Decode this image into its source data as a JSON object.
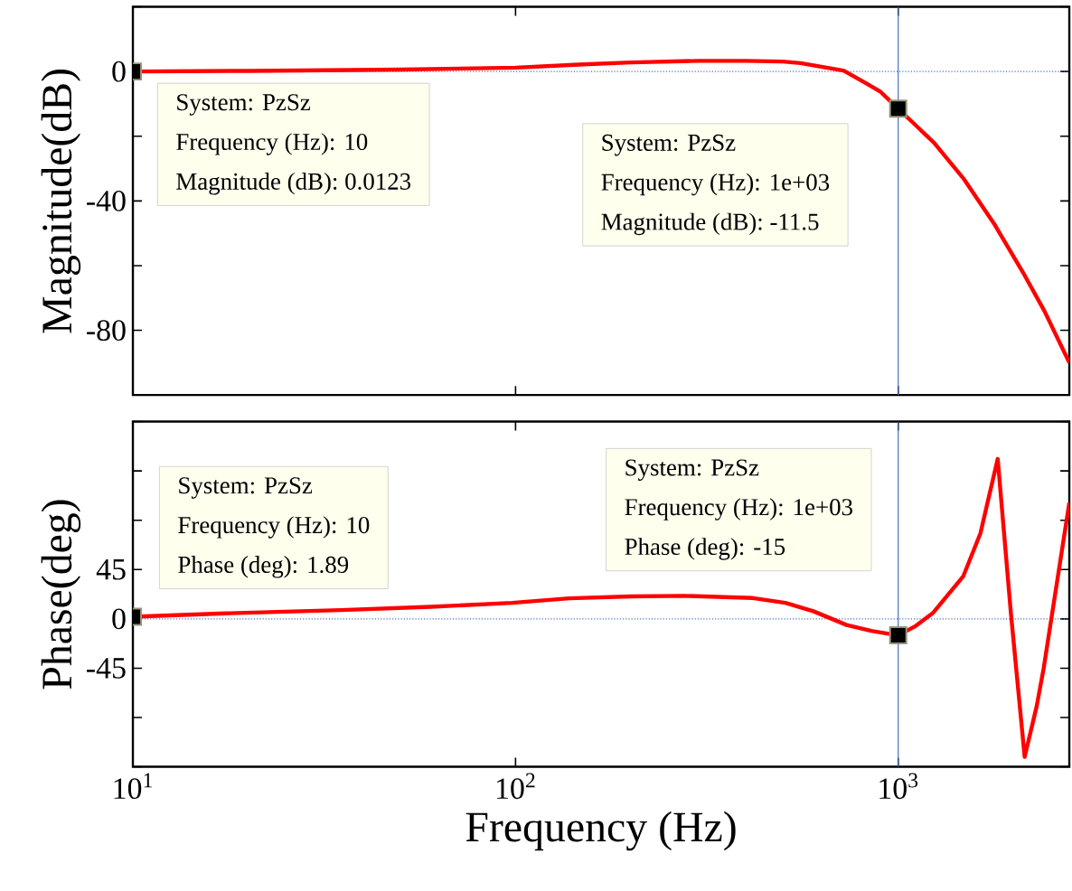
{
  "chart_data": [
    {
      "type": "line",
      "ylabel": "Magnitude(dB)",
      "log": "x",
      "tick_labels": "y",
      "xlim": [
        10,
        2800
      ],
      "xticks": [
        {
          "value": 10,
          "label": null
        },
        {
          "value": 100,
          "label": null
        },
        {
          "value": 1000,
          "label": null
        }
      ],
      "ylim": [
        -100,
        20
      ],
      "yticks": [
        {
          "value": -100,
          "label": null
        },
        -80,
        {
          "value": -60,
          "label": null
        },
        -40,
        {
          "value": -20,
          "label": null
        },
        0,
        {
          "value": 20,
          "label": null
        }
      ],
      "series": [
        {
          "color": "#ff0000",
          "x": [
            10,
            20,
            50,
            100,
            150,
            200,
            300,
            400,
            500,
            556,
            650,
            720,
            820,
            900,
            1000,
            1120,
            1240,
            1480,
            1780,
            2140,
            2410,
            2800
          ],
          "values": [
            0.0123,
            0.2,
            0.6,
            1.2,
            2.2,
            2.8,
            3.3,
            3.3,
            3.1,
            2.6,
            1.2,
            0.3,
            -3.5,
            -6.3,
            -11.5,
            -17,
            -22,
            -33,
            -47,
            -63,
            -74,
            -90
          ]
        }
      ],
      "line_style": "solid",
      "ref_lines": [
        {
          "axis": "y",
          "value": 0,
          "color": "#4472c4",
          "line_style": "dotted"
        },
        {
          "axis": "x",
          "value": 1000,
          "color": "#4472c4",
          "line_style": "solid"
        }
      ],
      "annotations": [
        "System: PzSz",
        "Frequency (Hz): 10",
        "Magnitude (dB): 0.0123",
        "System: PzSz",
        "Frequency (Hz): 1e+03",
        "Magnitude (dB): -11.5"
      ]
    },
    {
      "type": "line",
      "xlabel": "Frequency  (Hz)",
      "ylabel": "Phase(deg)",
      "log": "x",
      "xlim": [
        10,
        2800
      ],
      "xticks": [
        {
          "value": 10,
          "label": "10$^{1}$"
        },
        {
          "value": 100,
          "label": "10$^{2}$"
        },
        {
          "value": 1000,
          "label": "10$^{3}$"
        }
      ],
      "ylim": [
        -135,
        180
      ],
      "yticks": [
        {
          "value": -135,
          "label": null
        },
        {
          "value": -90,
          "label": null
        },
        -45,
        0,
        45,
        {
          "value": 90,
          "label": null
        },
        {
          "value": 135,
          "label": null
        },
        {
          "value": 180,
          "label": null
        }
      ],
      "series": [
        {
          "color": "#ff0000",
          "x": [
            10,
            17.5,
            35,
            60,
            98,
            138,
            200,
            276,
            417,
            507,
            600,
            733,
            850,
            1000,
            1110,
            1235,
            1480,
            1640,
            1820,
            1970,
            2140,
            2300,
            2400,
            2800
          ],
          "values": [
            1.89,
            5,
            8,
            11,
            14.6,
            18.7,
            20.5,
            21,
            19,
            14.6,
            7,
            -5.6,
            -11,
            -15,
            -6.6,
            5.7,
            39,
            78,
            146,
            5.7,
            -126,
            -80,
            -45,
            106
          ]
        }
      ],
      "line_style": "solid",
      "ref_lines": [
        {
          "axis": "y",
          "value": 0,
          "color": "#4472c4",
          "line_style": "dotted"
        },
        {
          "axis": "x",
          "value": 1000,
          "color": "#4472c4",
          "line_style": "solid"
        }
      ],
      "annotations": [
        "System: PzSz",
        "Frequency (Hz): 10",
        "Phase (deg): 1.89",
        "System: PzSz",
        "Frequency (Hz): 1e+03",
        "Phase (deg): -15"
      ]
    }
  ]
}
